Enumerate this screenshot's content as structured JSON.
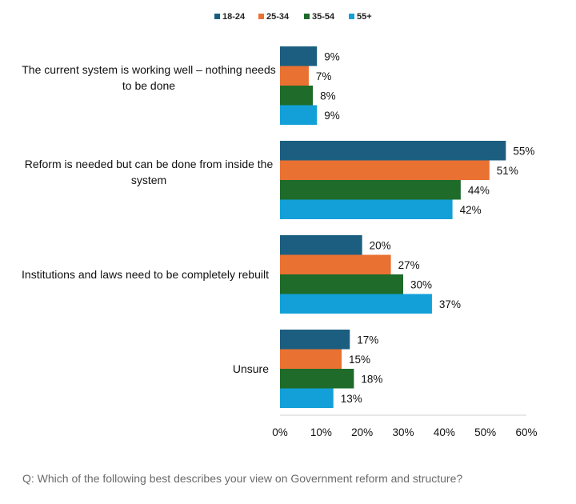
{
  "chart_data": {
    "type": "bar",
    "orientation": "horizontal",
    "title": "",
    "xlabel": "",
    "ylabel": "",
    "categories": [
      "The current system is working well – nothing needs to be done",
      "Reform is needed but can be done from inside the system",
      "Institutions and laws need to be completely rebuilt",
      "Unsure"
    ],
    "category_lines": [
      [
        "The current system is working well – nothing needs",
        "to be done"
      ],
      [
        "Reform is needed but can be done from inside the",
        "system"
      ],
      [
        "Institutions and laws need to be completely rebuilt"
      ],
      [
        "Unsure"
      ]
    ],
    "series": [
      {
        "name": "18-24",
        "color": "#1b5e80",
        "values": [
          9,
          55,
          20,
          17
        ]
      },
      {
        "name": "25-34",
        "color": "#e97132",
        "values": [
          7,
          51,
          27,
          15
        ]
      },
      {
        "name": "35-54",
        "color": "#1e6b2a",
        "values": [
          8,
          44,
          30,
          18
        ]
      },
      {
        "name": "55+",
        "color": "#13a0d8",
        "values": [
          9,
          42,
          37,
          13
        ]
      }
    ],
    "value_format": "{v}%",
    "xlim": [
      0,
      60
    ],
    "xticks": [
      0,
      10,
      20,
      30,
      40,
      50,
      60
    ],
    "xtick_labels": [
      "0%",
      "10%",
      "20%",
      "30%",
      "40%",
      "50%",
      "60%"
    ],
    "grid": false,
    "legend_position": "top-center"
  },
  "footer": {
    "question": "Q: Which of the following best describes your view on Government reform and structure?"
  }
}
